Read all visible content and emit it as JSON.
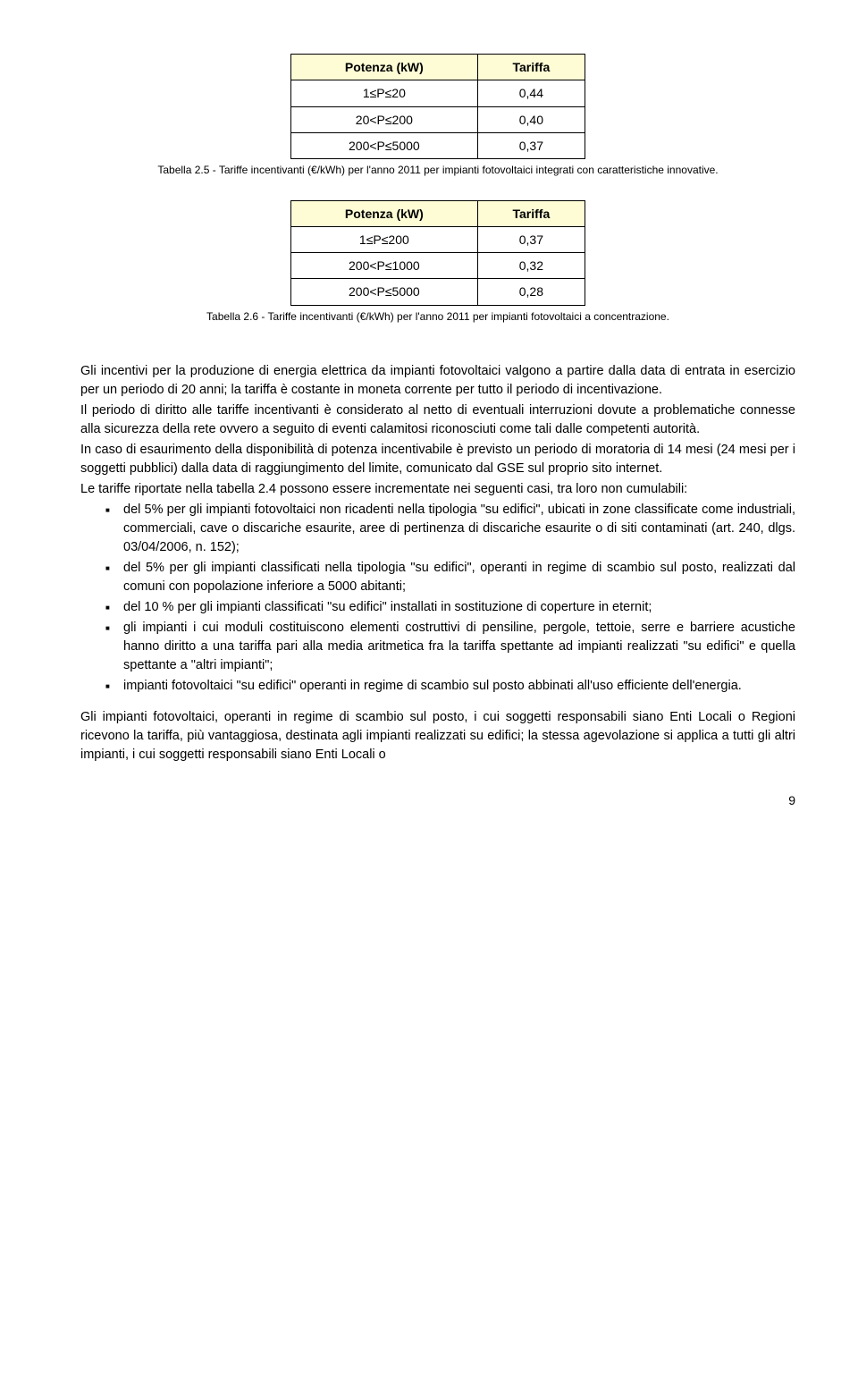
{
  "table1": {
    "header_bg": "#fdfcd5",
    "cols": [
      "Potenza (kW)",
      "Tariffa"
    ],
    "rows": [
      [
        "1≤P≤20",
        "0,44"
      ],
      [
        "20<P≤200",
        "0,40"
      ],
      [
        "200<P≤5000",
        "0,37"
      ]
    ],
    "caption": "Tabella 2.5 - Tariffe incentivanti (€/kWh) per l'anno 2011 per impianti fotovoltaici integrati con caratteristiche innovative."
  },
  "table2": {
    "header_bg": "#fdfcd5",
    "cols": [
      "Potenza (kW)",
      "Tariffa"
    ],
    "rows": [
      [
        "1≤P≤200",
        "0,37"
      ],
      [
        "200<P≤1000",
        "0,32"
      ],
      [
        "200<P≤5000",
        "0,28"
      ]
    ],
    "caption": "Tabella 2.6 - Tariffe incentivanti (€/kWh) per l'anno 2011 per impianti fotovoltaici a concentrazione."
  },
  "para1": "Gli incentivi per la produzione di energia elettrica da impianti fotovoltaici valgono a partire dalla data di entrata in esercizio per un periodo di 20 anni; la tariffa è costante in moneta corrente per tutto il periodo di incentivazione.",
  "para2": "Il periodo di diritto alle tariffe incentivanti è considerato al netto di eventuali interruzioni dovute a problematiche connesse alla sicurezza della rete ovvero a seguito di eventi calamitosi riconosciuti come tali dalle competenti autorità.",
  "para3": "In caso di esaurimento della disponibilità di potenza incentivabile è previsto un periodo di moratoria di 14 mesi (24 mesi per i soggetti pubblici) dalla data di raggiungimento del limite, comunicato dal GSE sul proprio sito internet.",
  "para4": "Le tariffe riportate nella tabella 2.4 possono essere incrementate nei seguenti casi, tra loro non cumulabili:",
  "bullets": [
    "del 5% per gli impianti fotovoltaici non ricadenti nella tipologia \"su edifici\", ubicati in zone classificate come industriali, commerciali, cave o discariche esaurite, aree di pertinenza di discariche esaurite o di siti contaminati (art. 240, dlgs. 03/04/2006, n. 152);",
    "del 5% per gli impianti classificati nella tipologia \"su edifici\", operanti in regime di scambio sul posto, realizzati dal comuni con popolazione inferiore a 5000 abitanti;",
    "del 10 % per gli impianti classificati \"su edifici\" installati in sostituzione di coperture in eternit;",
    "gli impianti i cui moduli costituiscono elementi costruttivi di pensiline, pergole, tettoie, serre e barriere acustiche hanno diritto a una tariffa pari alla media aritmetica fra la tariffa spettante ad impianti realizzati \"su edifici\" e quella spettante a \"altri impianti\";",
    "impianti fotovoltaici \"su edifici\" operanti in regime di scambio sul posto abbinati all'uso efficiente dell'energia."
  ],
  "para5": "Gli impianti fotovoltaici, operanti in regime di scambio sul posto, i cui soggetti responsabili siano Enti Locali o Regioni ricevono la tariffa, più vantaggiosa, destinata agli impianti realizzati su edifici; la stessa agevolazione si applica a tutti gli altri impianti, i cui soggetti responsabili siano Enti Locali o",
  "page_number": "9"
}
